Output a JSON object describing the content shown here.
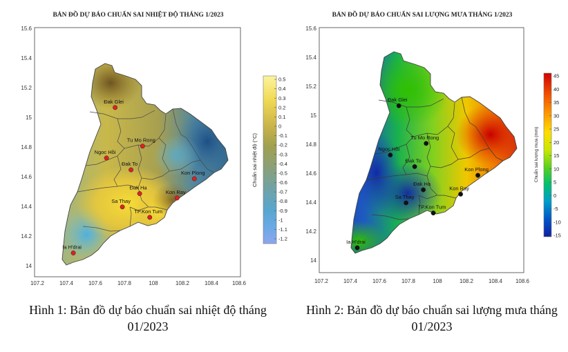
{
  "map1": {
    "title": "BẢN ĐỒ DỰ BÁO CHUẨN SAI NHIỆT ĐỘ THÁNG 1/2023",
    "colorbar_label": "Chuẩn sai nhiệt độ (°C)",
    "colorbar_ticks": [
      "0.5",
      "0.4",
      "0.3",
      "0.2",
      "0.1",
      "0",
      "-0.1",
      "-0.2",
      "-0.3",
      "-0.4",
      "-0.5",
      "-0.6",
      "-0.7",
      "-0.8",
      "-0.9",
      "-1",
      "-1.1",
      "-1.2"
    ],
    "colorbar_colors": [
      "#fbf4a0",
      "#f1da54",
      "#c9b44a",
      "#a0a050",
      "#8aa07a",
      "#6fa3a8",
      "#58a6cf",
      "#6aa8e6",
      "#8fa6f0"
    ],
    "station_color": "#e02020",
    "caption": "Hình 1: Bản đồ dự báo chuẩn sai nhiệt độ tháng 01/2023"
  },
  "map2": {
    "title": "BẢN ĐỒ DỰ BÁO CHUẨN SAI LƯỢNG MƯA THÁNG 1/2023",
    "colorbar_label": "Chuẩn sai lượng mưa (mm)",
    "colorbar_ticks": [
      "45",
      "40",
      "35",
      "30",
      "25",
      "20",
      "15",
      "10",
      "5",
      "0",
      "-5",
      "-10",
      "-15"
    ],
    "colorbar_colors": [
      "#d10000",
      "#f04a00",
      "#ff9900",
      "#ffdd00",
      "#c8e800",
      "#55d020",
      "#00c070",
      "#00a0c8",
      "#0050c8",
      "#1020a0"
    ],
    "station_color": "#111111",
    "caption": "Hình 2: Bản đồ dự báo chuẩn sai lượng mưa tháng 01/2023"
  },
  "axes": {
    "x_ticks": [
      "107.2",
      "107.4",
      "107.6",
      "107.8",
      "108",
      "108.2",
      "108.4",
      "108.6"
    ],
    "y_ticks": [
      "15.6",
      "15.4",
      "15.2",
      "15",
      "14.8",
      "14.6",
      "14.4",
      "14.2",
      "14"
    ],
    "xlim": [
      107.2,
      108.6
    ],
    "ylim": [
      13.95,
      15.6
    ]
  },
  "stations": [
    {
      "name": "Đak Glei",
      "lon": 107.74,
      "lat": 15.08
    },
    {
      "name": "Tu Mo Rong",
      "lon": 107.93,
      "lat": 14.82
    },
    {
      "name": "Ngoc Hồi",
      "lon": 107.68,
      "lat": 14.74
    },
    {
      "name": "Đak To",
      "lon": 107.85,
      "lat": 14.66
    },
    {
      "name": "Kon Plong",
      "lon": 108.29,
      "lat": 14.6
    },
    {
      "name": "Đak Ha",
      "lon": 107.91,
      "lat": 14.5
    },
    {
      "name": "Kon Ray",
      "lon": 108.17,
      "lat": 14.47
    },
    {
      "name": "Sa Thay",
      "lon": 107.79,
      "lat": 14.41
    },
    {
      "name": "TP.Kon Tum",
      "lon": 107.98,
      "lat": 14.34
    },
    {
      "name": "Ia H'drai",
      "lon": 107.45,
      "lat": 14.1
    }
  ]
}
